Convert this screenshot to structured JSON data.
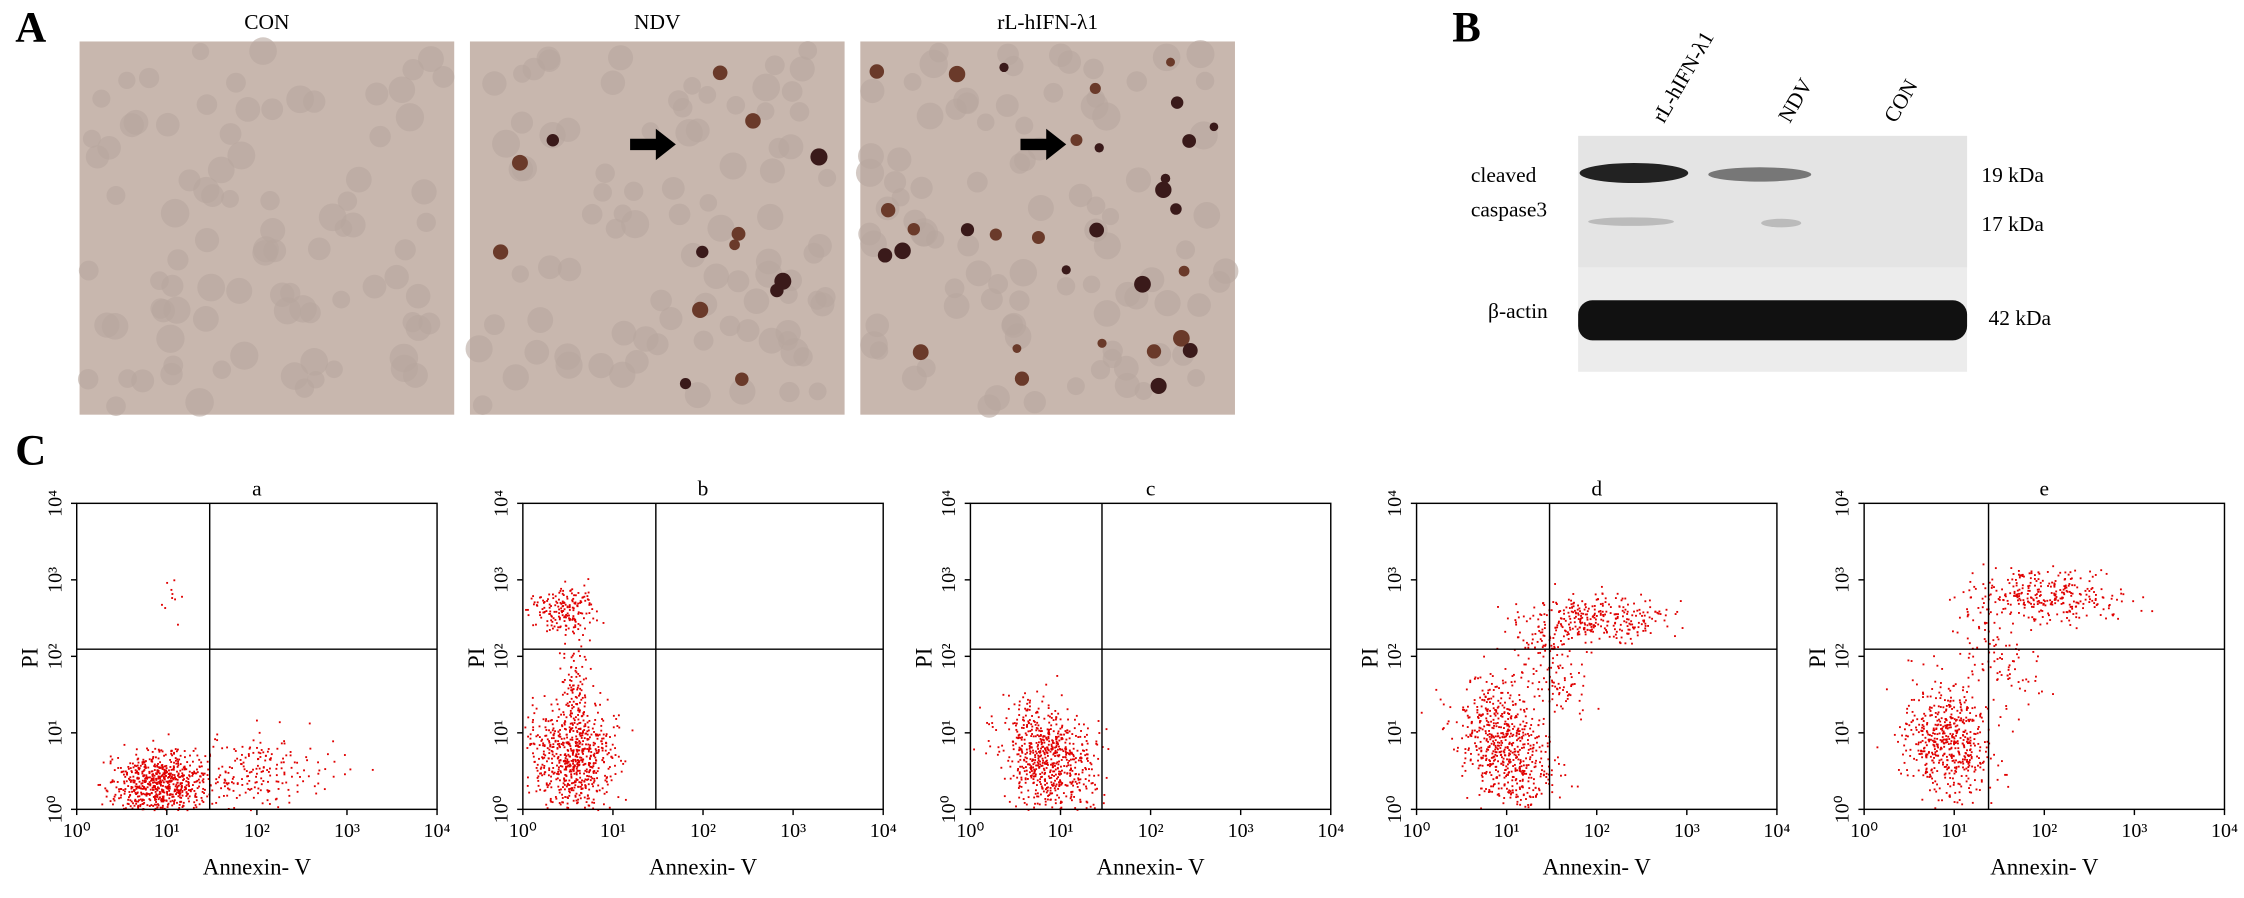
{
  "panel_a": {
    "label": "A",
    "images": [
      {
        "caption": "CON"
      },
      {
        "caption": "NDV"
      },
      {
        "caption": "rL-hIFN-λ1"
      }
    ]
  },
  "panel_b": {
    "label": "B",
    "lanes": [
      "rL-hIFN-λ1",
      "NDV",
      "CON"
    ],
    "row_labels": [
      "cleaved",
      "caspase3",
      "β-actin"
    ],
    "sizes": [
      "19 kDa",
      "17 kDa",
      "42 kDa"
    ]
  },
  "panel_c": {
    "label": "C",
    "x_label": "Annexin- V",
    "y_label": "PI",
    "ticks": [
      {
        "value": 1,
        "label": "10⁰"
      },
      {
        "value": 10,
        "label": "10¹"
      },
      {
        "value": 100,
        "label": "10²"
      },
      {
        "value": 1000,
        "label": "10³"
      },
      {
        "value": 10000,
        "label": "10⁴"
      }
    ],
    "plots": [
      {
        "title": "a"
      },
      {
        "title": "b"
      },
      {
        "title": "c"
      },
      {
        "title": "d"
      },
      {
        "title": "e"
      }
    ]
  }
}
